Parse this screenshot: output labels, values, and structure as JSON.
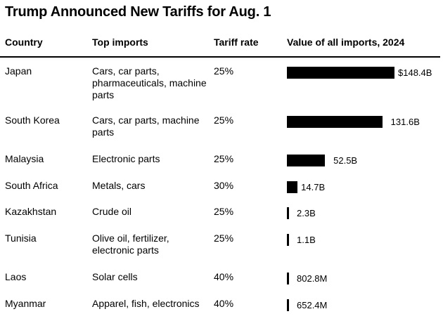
{
  "title": "Trump Announced New Tariffs for Aug. 1",
  "headers": {
    "country": "Country",
    "imports": "Top imports",
    "rate": "Tariff rate",
    "value": "Value of all imports, 2024"
  },
  "rows": [
    {
      "country": "Japan",
      "imports": "Cars, car parts, pharmaceuticals, machine parts",
      "rate": "25%",
      "value_label": "$148.4B"
    },
    {
      "country": "South Korea",
      "imports": "Cars, car parts, machine parts",
      "rate": "25%",
      "value_label": "131.6B"
    },
    {
      "country": "Malaysia",
      "imports": "Electronic parts",
      "rate": "25%",
      "value_label": "52.5B"
    },
    {
      "country": "South Africa",
      "imports": "Metals, cars",
      "rate": "30%",
      "value_label": "14.7B"
    },
    {
      "country": "Kazakhstan",
      "imports": "Crude oil",
      "rate": "25%",
      "value_label": "2.3B"
    },
    {
      "country": "Tunisia",
      "imports": "Olive oil, fertilizer, electronic parts",
      "rate": "25%",
      "value_label": "1.1B"
    },
    {
      "country": "Laos",
      "imports": "Solar cells",
      "rate": "40%",
      "value_label": "802.8M"
    },
    {
      "country": "Myanmar",
      "imports": "Apparel, fish, electronics",
      "rate": "40%",
      "value_label": "652.4M"
    }
  ],
  "chart_data": {
    "type": "bar",
    "title": "Value of all imports, 2024",
    "categories": [
      "Japan",
      "South Korea",
      "Malaysia",
      "South Africa",
      "Kazakhstan",
      "Tunisia",
      "Laos",
      "Myanmar"
    ],
    "values": [
      148.4,
      131.6,
      52.5,
      14.7,
      2.3,
      1.1,
      0.8028,
      0.6524
    ],
    "unit": "billion USD",
    "xlim": [
      0,
      148.4
    ]
  },
  "colors": {
    "bar": "#000000",
    "text": "#000000"
  }
}
